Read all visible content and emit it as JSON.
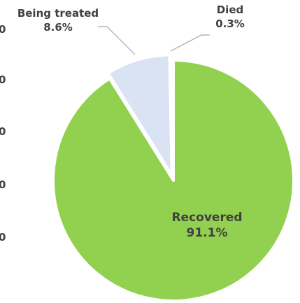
{
  "chart_data": {
    "type": "pie",
    "slices": [
      {
        "label": "Recovered",
        "value": 91.1,
        "display": "91.1%",
        "color": "#92D050"
      },
      {
        "label": "Being treated",
        "value": 8.6,
        "display": "8.6%",
        "color": "#DAE3F3"
      },
      {
        "label": "Died",
        "value": 0.3,
        "display": "0.3%",
        "color": "#FF7C80"
      }
    ],
    "leader_line_color": "#A6A6A6",
    "label_color": "#404040",
    "left_axis_ticks": [
      "0",
      "0",
      "0",
      "0",
      "0"
    ]
  }
}
